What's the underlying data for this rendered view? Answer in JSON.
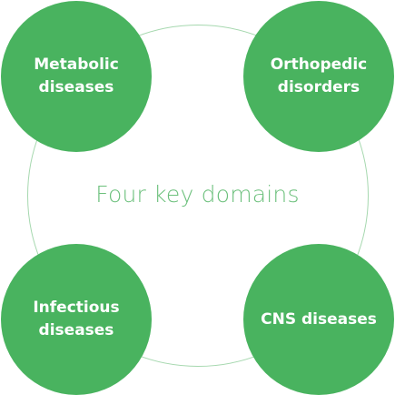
{
  "diagram": {
    "center_label": "Four key domains",
    "nodes": [
      {
        "label": "Metabolic diseases"
      },
      {
        "label": "Orthopedic disorders"
      },
      {
        "label": "Infectious diseases"
      },
      {
        "label": "CNS diseases"
      }
    ]
  },
  "colors": {
    "node_fill": "#49b35f",
    "ring": "#a6d8af",
    "center_text": "#6cc07c"
  }
}
